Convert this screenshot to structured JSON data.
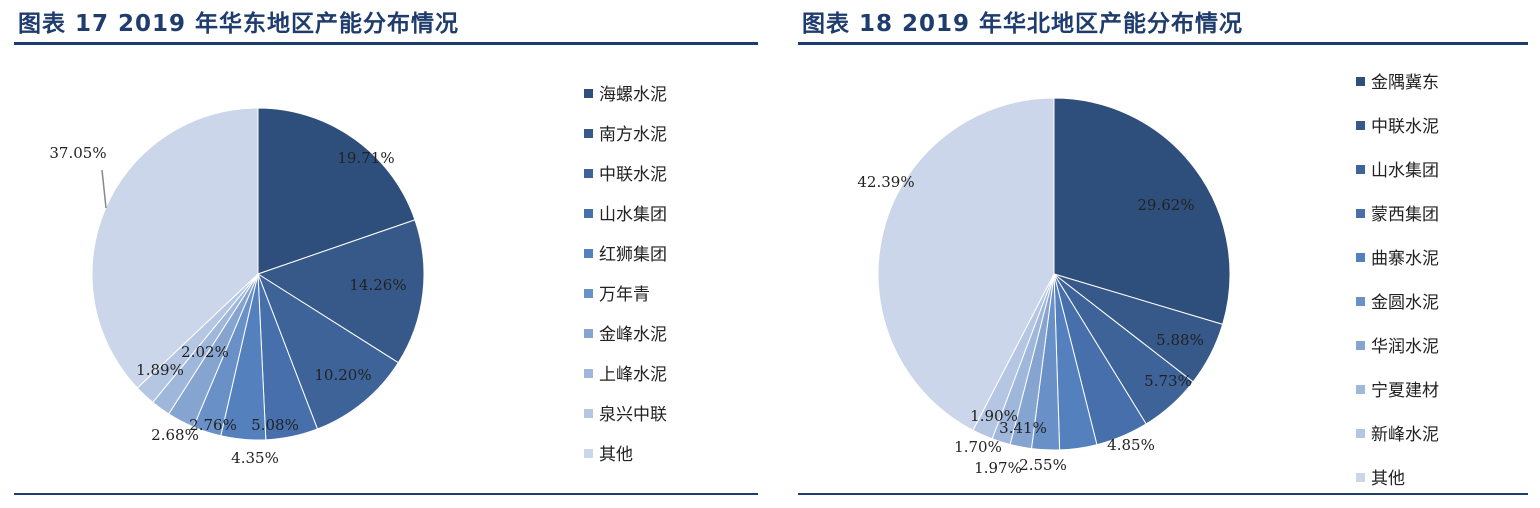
{
  "figures": [
    {
      "title": "图表 17   2019 年华东地区产能分布情况",
      "chart_data": {
        "type": "pie",
        "start_angle_deg": 90,
        "direction": "clockwise",
        "legend_position": "right",
        "slices": [
          {
            "label": "海螺水泥",
            "value": 19.71,
            "text": "19.71%",
            "color": "#2e4f7b"
          },
          {
            "label": "南方水泥",
            "value": 14.26,
            "text": "14.26%",
            "color": "#36598a"
          },
          {
            "label": "中联水泥",
            "value": 10.2,
            "text": "10.20%",
            "color": "#3d6399"
          },
          {
            "label": "山水集团",
            "value": 5.08,
            "text": "5.08%",
            "color": "#466fab"
          },
          {
            "label": "红狮集团",
            "value": 4.35,
            "text": "4.35%",
            "color": "#5480bd"
          },
          {
            "label": "万年青",
            "value": 2.76,
            "text": "2.76%",
            "color": "#6a91c7"
          },
          {
            "label": "金峰水泥",
            "value": 2.68,
            "text": "2.68%",
            "color": "#86a4d0"
          },
          {
            "label": "上峰水泥",
            "value": 1.89,
            "text": "1.89%",
            "color": "#9fb7da"
          },
          {
            "label": "泉兴中联",
            "value": 2.02,
            "text": "2.02%",
            "color": "#b4c6e2"
          },
          {
            "label": "其他",
            "value": 37.05,
            "text": "37.05%",
            "color": "#cbd6ea"
          }
        ]
      }
    },
    {
      "title": "图表 18   2019 年华北地区产能分布情况",
      "chart_data": {
        "type": "pie",
        "start_angle_deg": 90,
        "direction": "clockwise",
        "legend_position": "right",
        "slices": [
          {
            "label": "金隅冀东",
            "value": 29.62,
            "text": "29.62%",
            "color": "#2e4f7b"
          },
          {
            "label": "中联水泥",
            "value": 5.88,
            "text": "5.88%",
            "color": "#36598a"
          },
          {
            "label": "山水集团",
            "value": 5.73,
            "text": "5.73%",
            "color": "#3d6399"
          },
          {
            "label": "蒙西集团",
            "value": 4.85,
            "text": "4.85%",
            "color": "#466fab"
          },
          {
            "label": "曲寨水泥",
            "value": 3.41,
            "text": "3.41%",
            "color": "#5480bd"
          },
          {
            "label": "金圆水泥",
            "value": 2.55,
            "text": "2.55%",
            "color": "#6a91c7"
          },
          {
            "label": "华润水泥",
            "value": 1.97,
            "text": "1.97%",
            "color": "#86a4d0"
          },
          {
            "label": "宁夏建材",
            "value": 1.7,
            "text": "1.70%",
            "color": "#9fb7da"
          },
          {
            "label": "新峰水泥",
            "value": 1.9,
            "text": "1.90%",
            "color": "#b4c6e2"
          },
          {
            "label": "其他",
            "value": 42.39,
            "text": "42.39%",
            "color": "#cbd6ea"
          }
        ]
      }
    }
  ]
}
